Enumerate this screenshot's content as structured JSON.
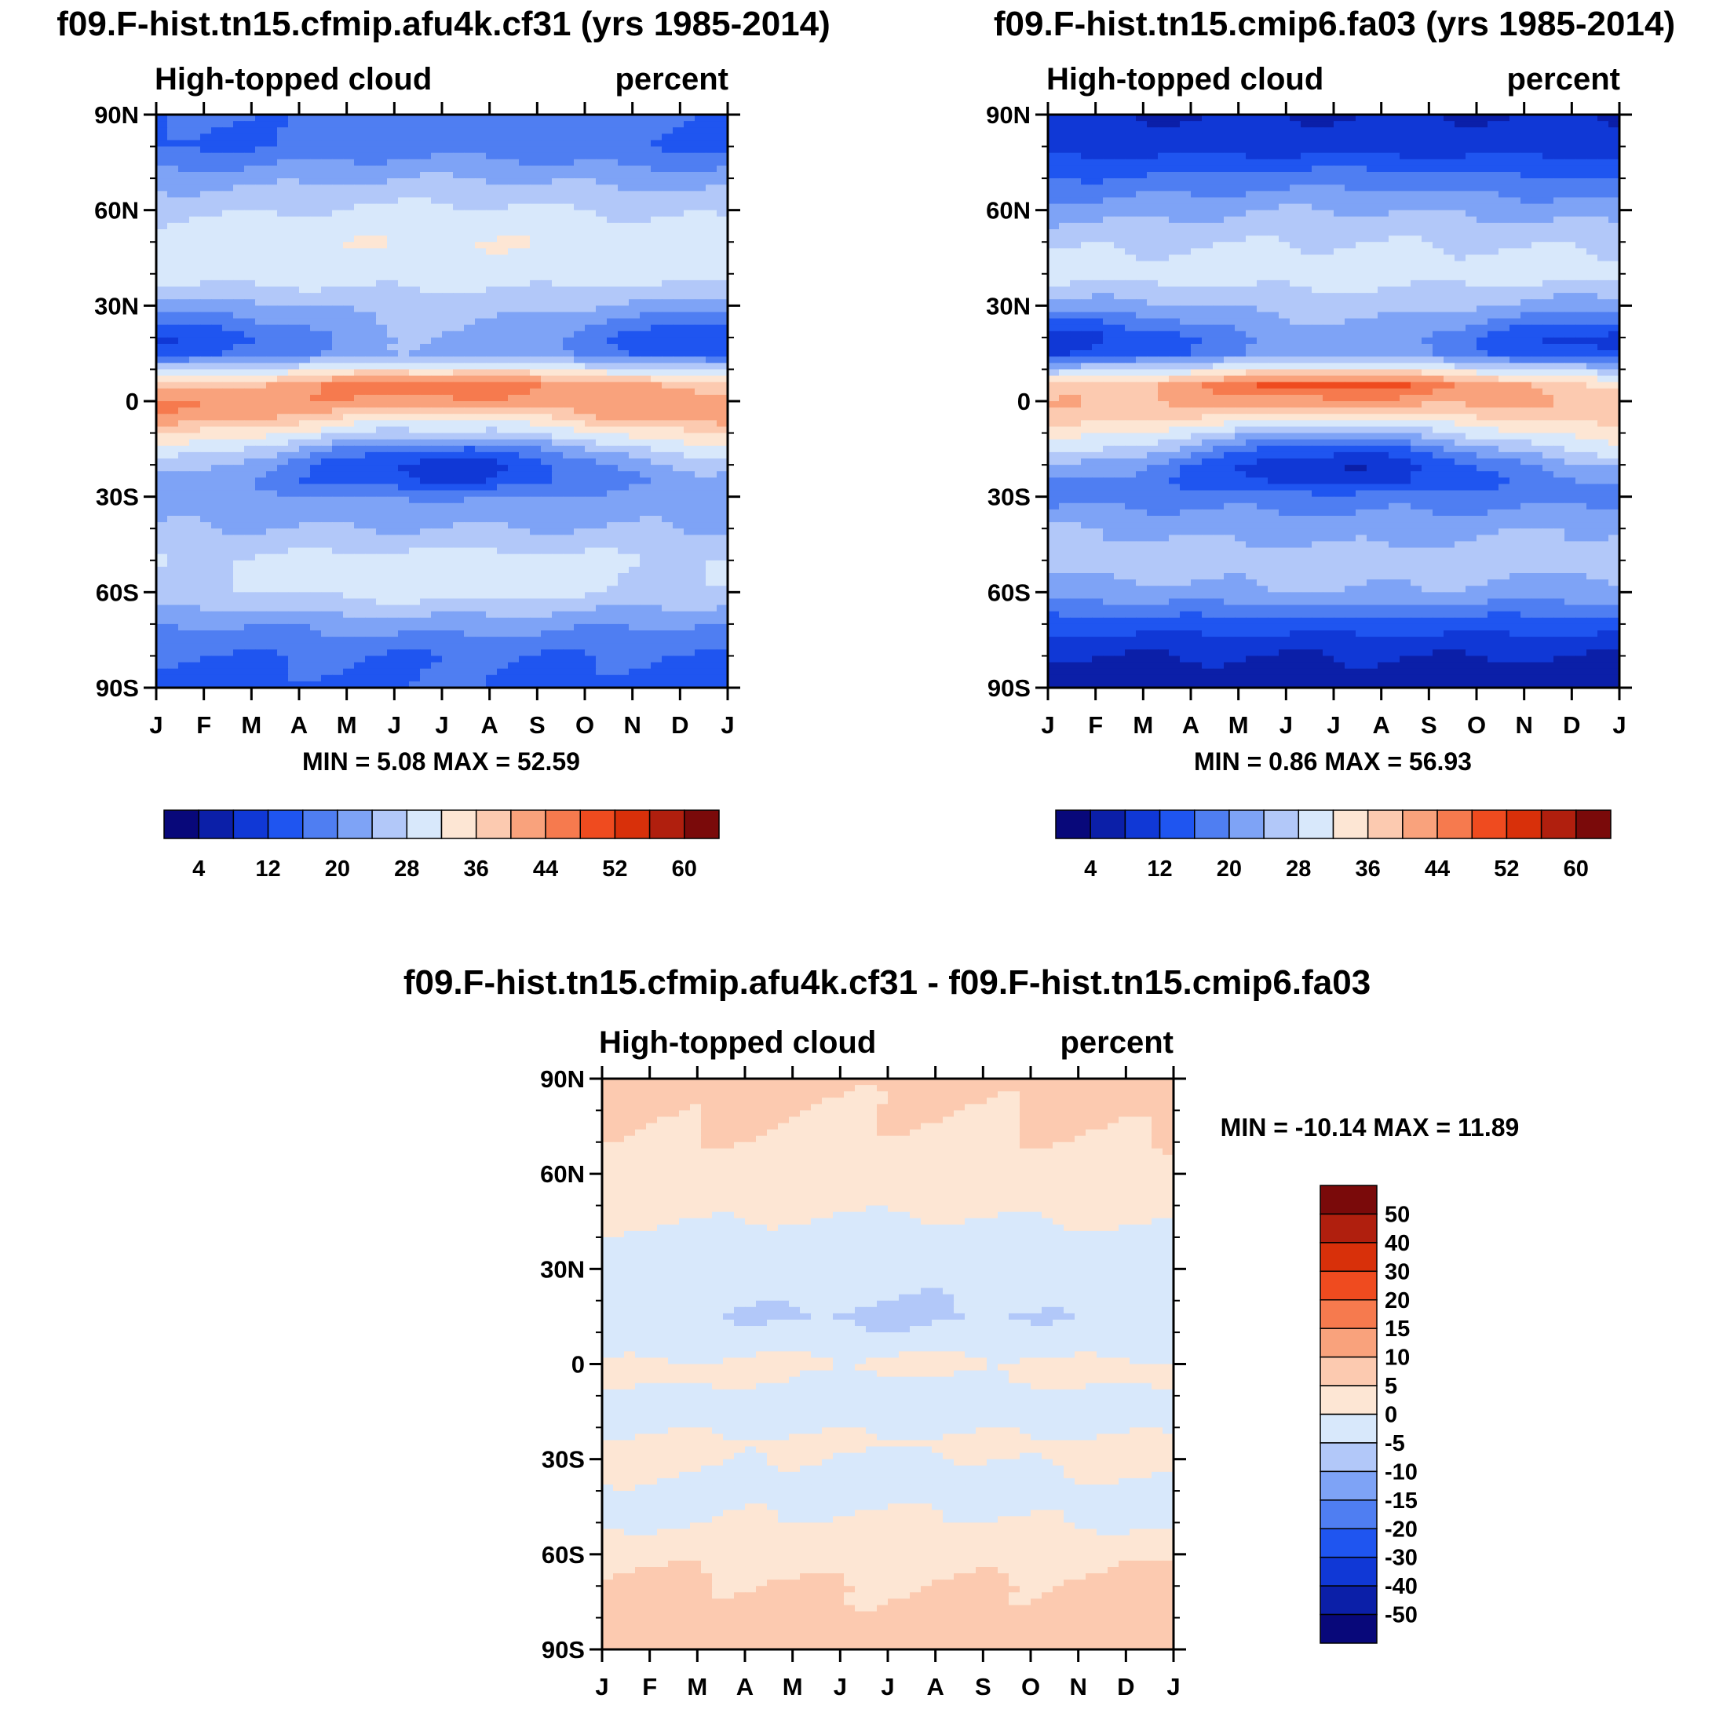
{
  "colors": {
    "palette": [
      "#08087a",
      "#0b1fa8",
      "#1038d6",
      "#1f55f0",
      "#4f7ef2",
      "#7ea3f6",
      "#b2c8f9",
      "#d8e8fb",
      "#fde6d4",
      "#fccab0",
      "#f9a27c",
      "#f67a4e",
      "#ef4b1f",
      "#d8300a",
      "#b01f0e",
      "#7a0a0a"
    ]
  },
  "chart_data": [
    {
      "id": "panel-cfmip",
      "type": "heatmap",
      "title": "f09.F-hist.tn15.cfmip.afu4k.cf31 (yrs 1985-2014)",
      "left_label": "High-topped cloud",
      "right_label": "percent",
      "xlabel": "",
      "ylabel": "",
      "x_ticks": [
        "J",
        "F",
        "M",
        "A",
        "M",
        "J",
        "J",
        "A",
        "S",
        "O",
        "N",
        "D",
        "J"
      ],
      "y_ticks": [
        "90N",
        "60N",
        "30N",
        "0",
        "30S",
        "60S",
        "90S"
      ],
      "y_range": [
        90,
        -90
      ],
      "minmax_text": "MIN =   5.08 MAX =  52.59",
      "min": 5.08,
      "max": 52.59,
      "colorbar": {
        "orientation": "horizontal",
        "labels": [
          "4",
          "12",
          "20",
          "28",
          "36",
          "44",
          "52",
          "60"
        ],
        "bins": 16
      },
      "field_profile": {
        "latitudes": [
          90,
          80,
          70,
          60,
          50,
          40,
          30,
          20,
          15,
          10,
          5,
          0,
          -5,
          -10,
          -15,
          -20,
          -25,
          -30,
          -40,
          -50,
          -60,
          -70,
          -80,
          -90
        ],
        "jan": [
          16,
          15,
          22,
          27,
          30,
          31,
          22,
          12,
          14,
          28,
          38,
          44,
          43,
          36,
          31,
          26,
          22,
          22,
          24,
          28,
          27,
          20,
          16,
          14
        ],
        "jul": [
          18,
          18,
          24,
          29,
          32,
          30,
          26,
          24,
          24,
          34,
          47,
          43,
          34,
          26,
          16,
          10,
          12,
          20,
          24,
          30,
          30,
          22,
          16,
          16
        ]
      }
    },
    {
      "id": "panel-cmip6",
      "type": "heatmap",
      "title": "f09.F-hist.tn15.cmip6.fa03 (yrs 1985-2014)",
      "left_label": "High-topped cloud",
      "right_label": "percent",
      "xlabel": "",
      "ylabel": "",
      "x_ticks": [
        "J",
        "F",
        "M",
        "A",
        "M",
        "J",
        "J",
        "A",
        "S",
        "O",
        "N",
        "D",
        "J"
      ],
      "y_ticks": [
        "90N",
        "60N",
        "30N",
        "0",
        "30S",
        "60S",
        "90S"
      ],
      "y_range": [
        90,
        -90
      ],
      "minmax_text": "MIN =   0.86 MAX =  56.93",
      "min": 0.86,
      "max": 56.93,
      "colorbar": {
        "orientation": "horizontal",
        "labels": [
          "4",
          "12",
          "20",
          "28",
          "36",
          "44",
          "52",
          "60"
        ],
        "bins": 16
      },
      "field_profile": {
        "latitudes": [
          90,
          80,
          70,
          60,
          50,
          40,
          30,
          20,
          15,
          10,
          5,
          0,
          -5,
          -10,
          -15,
          -20,
          -25,
          -30,
          -40,
          -50,
          -60,
          -70,
          -80,
          -90
        ],
        "jan": [
          8,
          10,
          16,
          22,
          27,
          30,
          22,
          10,
          12,
          26,
          36,
          40,
          38,
          34,
          30,
          24,
          20,
          18,
          24,
          26,
          22,
          14,
          8,
          5
        ],
        "jul": [
          8,
          10,
          18,
          24,
          28,
          30,
          26,
          22,
          22,
          34,
          50,
          43,
          33,
          24,
          14,
          8,
          10,
          18,
          22,
          26,
          24,
          14,
          8,
          6
        ]
      }
    },
    {
      "id": "panel-diff",
      "type": "heatmap",
      "title": "f09.F-hist.tn15.cfmip.afu4k.cf31 - f09.F-hist.tn15.cmip6.fa03",
      "left_label": "High-topped cloud",
      "right_label": "percent",
      "xlabel": "",
      "ylabel": "",
      "x_ticks": [
        "J",
        "F",
        "M",
        "A",
        "M",
        "J",
        "J",
        "A",
        "S",
        "O",
        "N",
        "D",
        "J"
      ],
      "y_ticks": [
        "90N",
        "60N",
        "30N",
        "0",
        "30S",
        "60S",
        "90S"
      ],
      "y_range": [
        90,
        -90
      ],
      "minmax_text": "MIN = -10.14 MAX =  11.89",
      "min": -10.14,
      "max": 11.89,
      "colorbar": {
        "orientation": "vertical",
        "labels": [
          "50",
          "40",
          "30",
          "20",
          "15",
          "10",
          "5",
          "0",
          "-5",
          "-10",
          "-15",
          "-20",
          "-30",
          "-40",
          "-50"
        ],
        "bins": 16
      },
      "field_profile": {
        "latitudes": [
          90,
          80,
          70,
          60,
          50,
          40,
          30,
          20,
          15,
          10,
          5,
          0,
          -5,
          -10,
          -15,
          -20,
          -25,
          -30,
          -40,
          -50,
          -60,
          -70,
          -80,
          -90
        ],
        "jan": [
          6,
          6,
          5,
          3,
          2,
          -1,
          -2,
          -3,
          -4,
          -3,
          -2,
          1,
          2,
          -2,
          -2,
          -1,
          1,
          2,
          -1,
          -1,
          4,
          6,
          6,
          6
        ],
        "jul": [
          6,
          5,
          4,
          2,
          1,
          -2,
          -3,
          -5,
          -6,
          -4,
          -1,
          1,
          -1,
          -2,
          -2,
          -1,
          1,
          -1,
          -2,
          1,
          3,
          5,
          6,
          6
        ]
      }
    }
  ]
}
